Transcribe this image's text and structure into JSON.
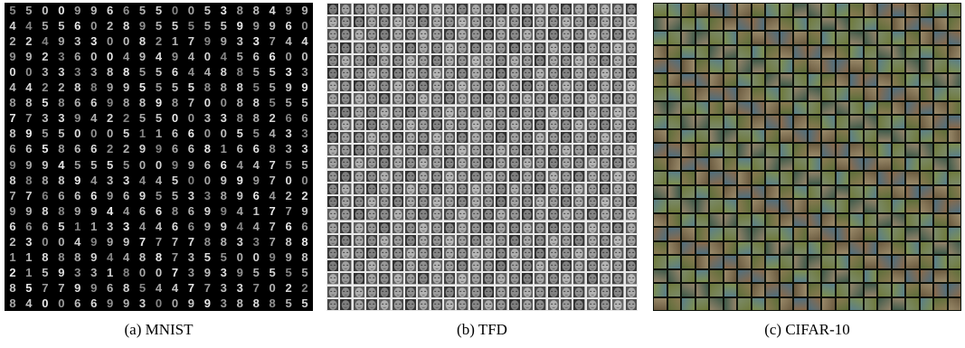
{
  "figure": {
    "captions": {
      "a": "(a) MNIST",
      "b": "(b) TFD",
      "c": "(c) CIFAR-10"
    }
  },
  "mnist_rows": [
    "5500996655005388499",
    "4455602895555599960",
    "2249330082179933744",
    "9923600494940456600",
    "0033338855644885533",
    "4422889955558885599",
    "8858669889870088555",
    "7733942255003388266",
    "8955000511660055433",
    "6658662299668166833",
    "9994555500996644755",
    "8888943344500999700",
    "7766669695533896422",
    "9988994466869941779",
    "6665113344669944766",
    "2300499977778833788",
    "1188894488735500998",
    "2159331800739395555",
    "8577996854477337022",
    "8400669930099388855"
  ],
  "grid_counts": {
    "tfd_cols": 24,
    "tfd_rows": 24,
    "cifar_cols": 22,
    "cifar_rows": 22
  }
}
